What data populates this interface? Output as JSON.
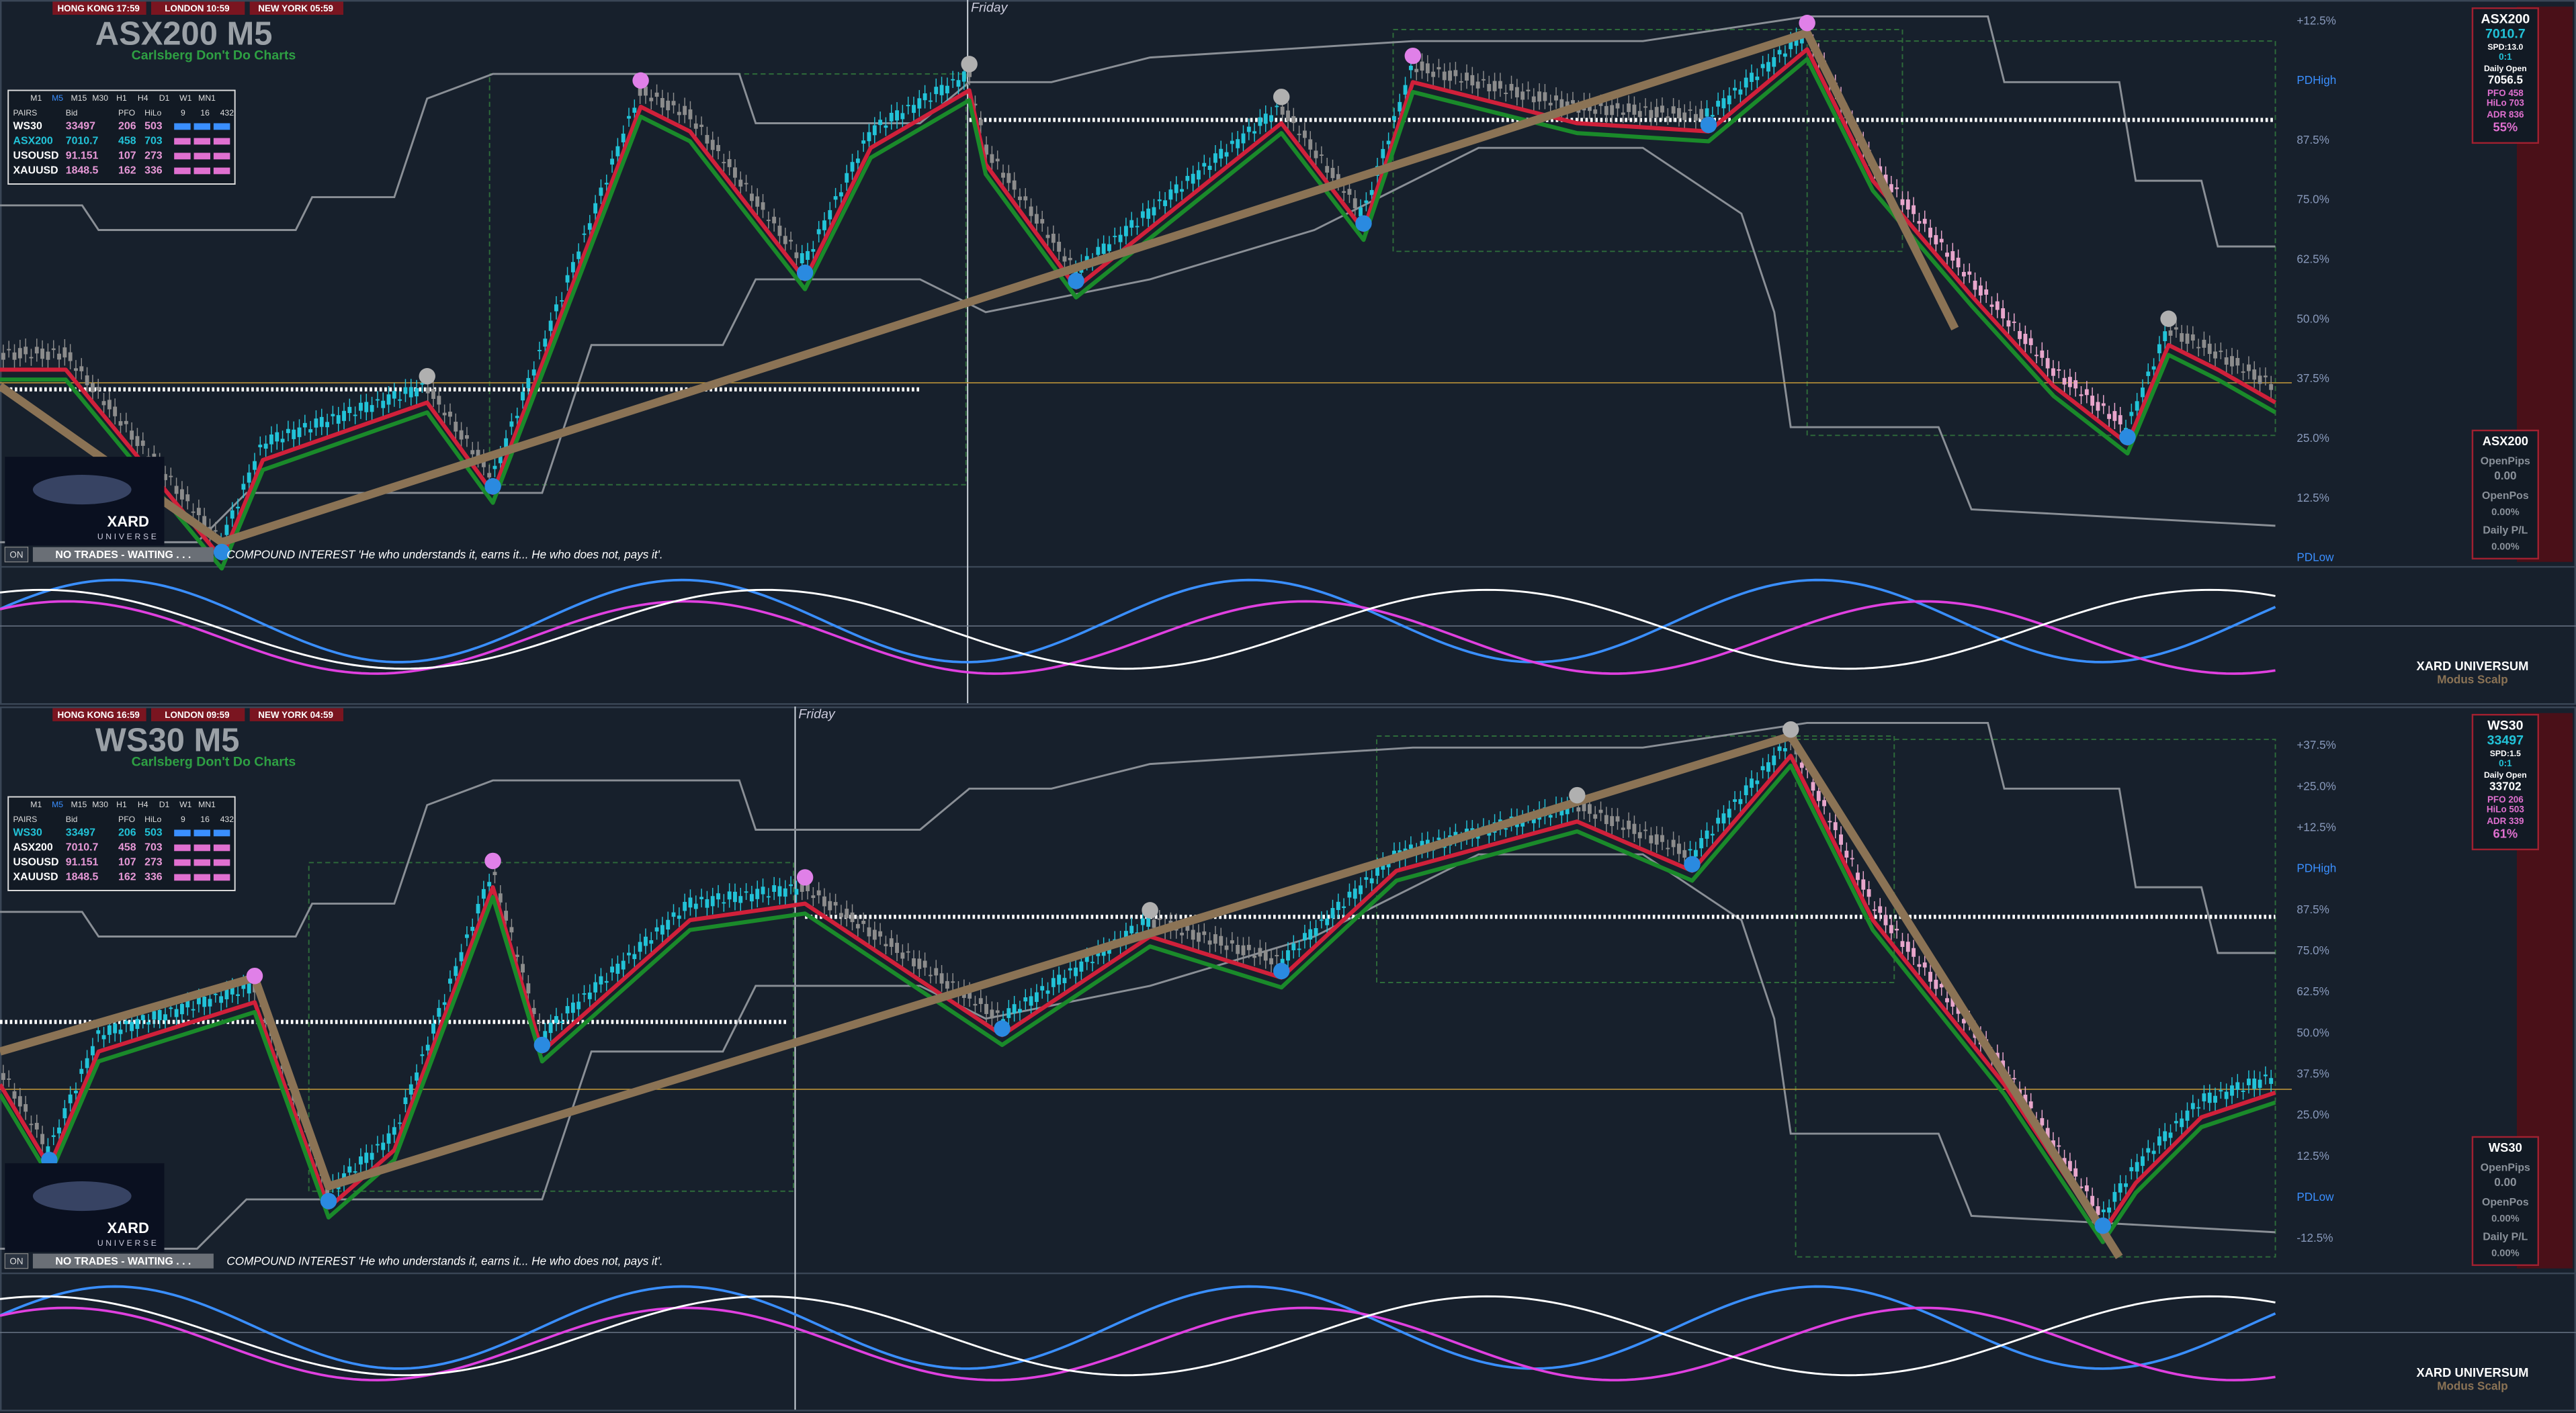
{
  "panels": [
    {
      "clocks": [
        "HONG KONG 17:59",
        "LONDON 10:59",
        "NEW YORK 05:59"
      ],
      "title": "ASX200 M5",
      "subtitle": "Carlsberg Don't Do Charts",
      "day_label": "Friday",
      "table": {
        "timeframes": [
          "M1",
          "M5",
          "M15",
          "M30",
          "H1",
          "H4",
          "D1",
          "W1",
          "MN1"
        ],
        "columns": [
          "PAIRS",
          "Bid",
          "PFO",
          "HiLo",
          "9",
          "16",
          "432"
        ],
        "rows": [
          [
            "WS30",
            "33497",
            "206",
            "503"
          ],
          [
            "ASX200",
            "7010.7",
            "458",
            "703"
          ],
          [
            "USOUSD",
            "91.151",
            "107",
            "273"
          ],
          [
            "XAUUSD",
            "1848.5",
            "162",
            "336"
          ]
        ]
      },
      "levels": [
        "+12.5%",
        "PDHigh",
        "87.5%",
        "75.0%",
        "62.5%",
        "50.0%",
        "37.5%",
        "25.0%",
        "12.5%",
        "PDLow"
      ],
      "info": {
        "symbol": "ASX200",
        "price": "7010.7",
        "spread": "SPD:13.0",
        "ratio": "0:1",
        "daily_open_label": "Daily Open",
        "daily_open": "7056.5",
        "pfo": "PFO 458",
        "hilo": "HiLo 703",
        "adr": "ADR 836",
        "adr_percent": "55%"
      },
      "account": {
        "symbol": "ASX200",
        "open_pips_label": "OpenPips",
        "open_pips": "0.00",
        "open_pos_label": "OpenPos",
        "open_pos": "0.00%",
        "daily_pl_label": "Daily P/L",
        "daily_pl": "0.00%"
      },
      "status": {
        "toggle": "ON",
        "message": "NO TRADES - WAITING . . .",
        "quote": "COMPOUND INTEREST 'He who understands it, earns it... He who does not, pays it'."
      },
      "footer": {
        "brand": "XARD UNIVERSUM",
        "mode": "Modus Scalp"
      },
      "logo": {
        "name": "XARD",
        "tagline": "UNIVERSE"
      }
    },
    {
      "clocks": [
        "HONG KONG 16:59",
        "LONDON 09:59",
        "NEW YORK 04:59"
      ],
      "title": "WS30 M5",
      "subtitle": "Carlsberg Don't Do Charts",
      "day_label": "Friday",
      "table": {
        "timeframes": [
          "M1",
          "M5",
          "M15",
          "M30",
          "H1",
          "H4",
          "D1",
          "W1",
          "MN1"
        ],
        "columns": [
          "PAIRS",
          "Bid",
          "PFO",
          "HiLo",
          "9",
          "16",
          "432"
        ],
        "rows": [
          [
            "WS30",
            "33497",
            "206",
            "503"
          ],
          [
            "ASX200",
            "7010.7",
            "458",
            "703"
          ],
          [
            "USOUSD",
            "91.151",
            "107",
            "273"
          ],
          [
            "XAUUSD",
            "1848.5",
            "162",
            "336"
          ]
        ]
      },
      "levels": [
        "+37.5%",
        "+25.0%",
        "+12.5%",
        "PDHigh",
        "87.5%",
        "75.0%",
        "62.5%",
        "50.0%",
        "37.5%",
        "25.0%",
        "12.5%",
        "PDLow",
        "-12.5%"
      ],
      "info": {
        "symbol": "WS30",
        "price": "33497",
        "spread": "SPD:1.5",
        "ratio": "0:1",
        "daily_open_label": "Daily Open",
        "daily_open": "33702",
        "pfo": "PFO 206",
        "hilo": "HiLo 503",
        "adr": "ADR 339",
        "adr_percent": "61%"
      },
      "account": {
        "symbol": "WS30",
        "open_pips_label": "OpenPips",
        "open_pips": "0.00",
        "open_pos_label": "OpenPos",
        "open_pos": "0.00%",
        "daily_pl_label": "Daily P/L",
        "daily_pl": "0.00%"
      },
      "status": {
        "toggle": "ON",
        "message": "NO TRADES - WAITING . . .",
        "quote": "COMPOUND INTEREST 'He who understands it, earns it... He who does not, pays it'."
      },
      "footer": {
        "brand": "XARD UNIVERSUM",
        "mode": "Modus Scalp"
      },
      "logo": {
        "name": "XARD",
        "tagline": "UNIVERSE"
      }
    }
  ]
}
